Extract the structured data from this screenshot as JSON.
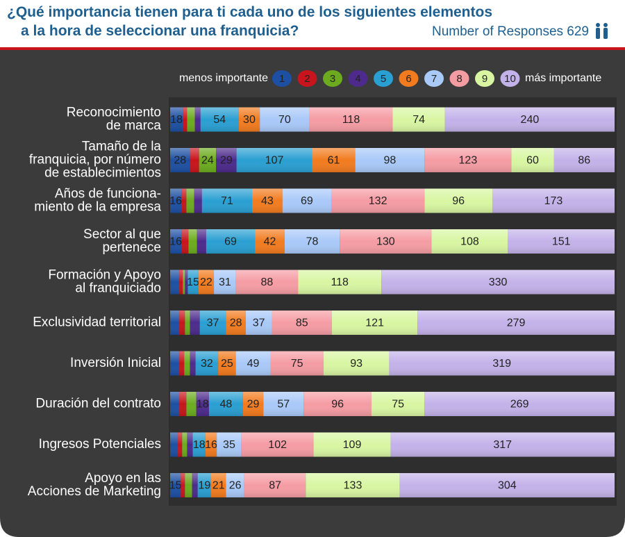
{
  "chart_data": {
    "type": "stacked-bar",
    "title": "¿Qué importancia tienen para ti cada uno de los siguientes elementos\na la hora de seleccionar una franquicia?",
    "subtitle": "Number of Responses 629",
    "legend_low": "menos importante",
    "legend_high": "más importante",
    "categories": [
      "Reconocimiento\nde marca",
      "Tamaño de la\nfranquicia, por número\nde establecimientos",
      "Años de funciona-\nmiento de la empresa",
      "Sector al que\npertenece",
      "Formación y Apoyo\nal franquiciado",
      "Exclusividad territorial",
      "Inversión Inicial",
      "Duración del contrato",
      "Ingresos Potenciales",
      "Apoyo en las\nAcciones de Marketing"
    ],
    "series": [
      {
        "name": "1",
        "color": "#1d4fa3",
        "values": [
          18,
          28,
          16,
          16,
          13,
          13,
          13,
          13,
          11,
          15
        ]
      },
      {
        "name": "2",
        "color": "#c8141c",
        "values": [
          6,
          13,
          7,
          10,
          5,
          8,
          7,
          10,
          6,
          6
        ]
      },
      {
        "name": "3",
        "color": "#6cab1f",
        "values": [
          11,
          24,
          11,
          12,
          3,
          7,
          8,
          14,
          7,
          10
        ]
      },
      {
        "name": "4",
        "color": "#4d2a8c",
        "values": [
          8,
          29,
          11,
          13,
          4,
          14,
          8,
          18,
          8,
          8
        ]
      },
      {
        "name": "5",
        "color": "#2a9fd2",
        "values": [
          54,
          107,
          71,
          69,
          15,
          37,
          32,
          48,
          18,
          19
        ]
      },
      {
        "name": "6",
        "color": "#f27b1f",
        "values": [
          30,
          61,
          43,
          42,
          22,
          28,
          25,
          29,
          16,
          21
        ]
      },
      {
        "name": "7",
        "color": "#a9c9f8",
        "values": [
          70,
          98,
          69,
          78,
          31,
          37,
          49,
          57,
          35,
          26
        ]
      },
      {
        "name": "8",
        "color": "#f59ca3",
        "values": [
          118,
          123,
          132,
          130,
          88,
          85,
          75,
          96,
          102,
          87
        ]
      },
      {
        "name": "9",
        "color": "#d8f6a2",
        "values": [
          74,
          60,
          96,
          108,
          118,
          121,
          93,
          75,
          109,
          133
        ]
      },
      {
        "name": "10",
        "color": "#c3b2e9",
        "values": [
          240,
          86,
          173,
          151,
          330,
          279,
          319,
          269,
          317,
          304
        ]
      }
    ]
  }
}
